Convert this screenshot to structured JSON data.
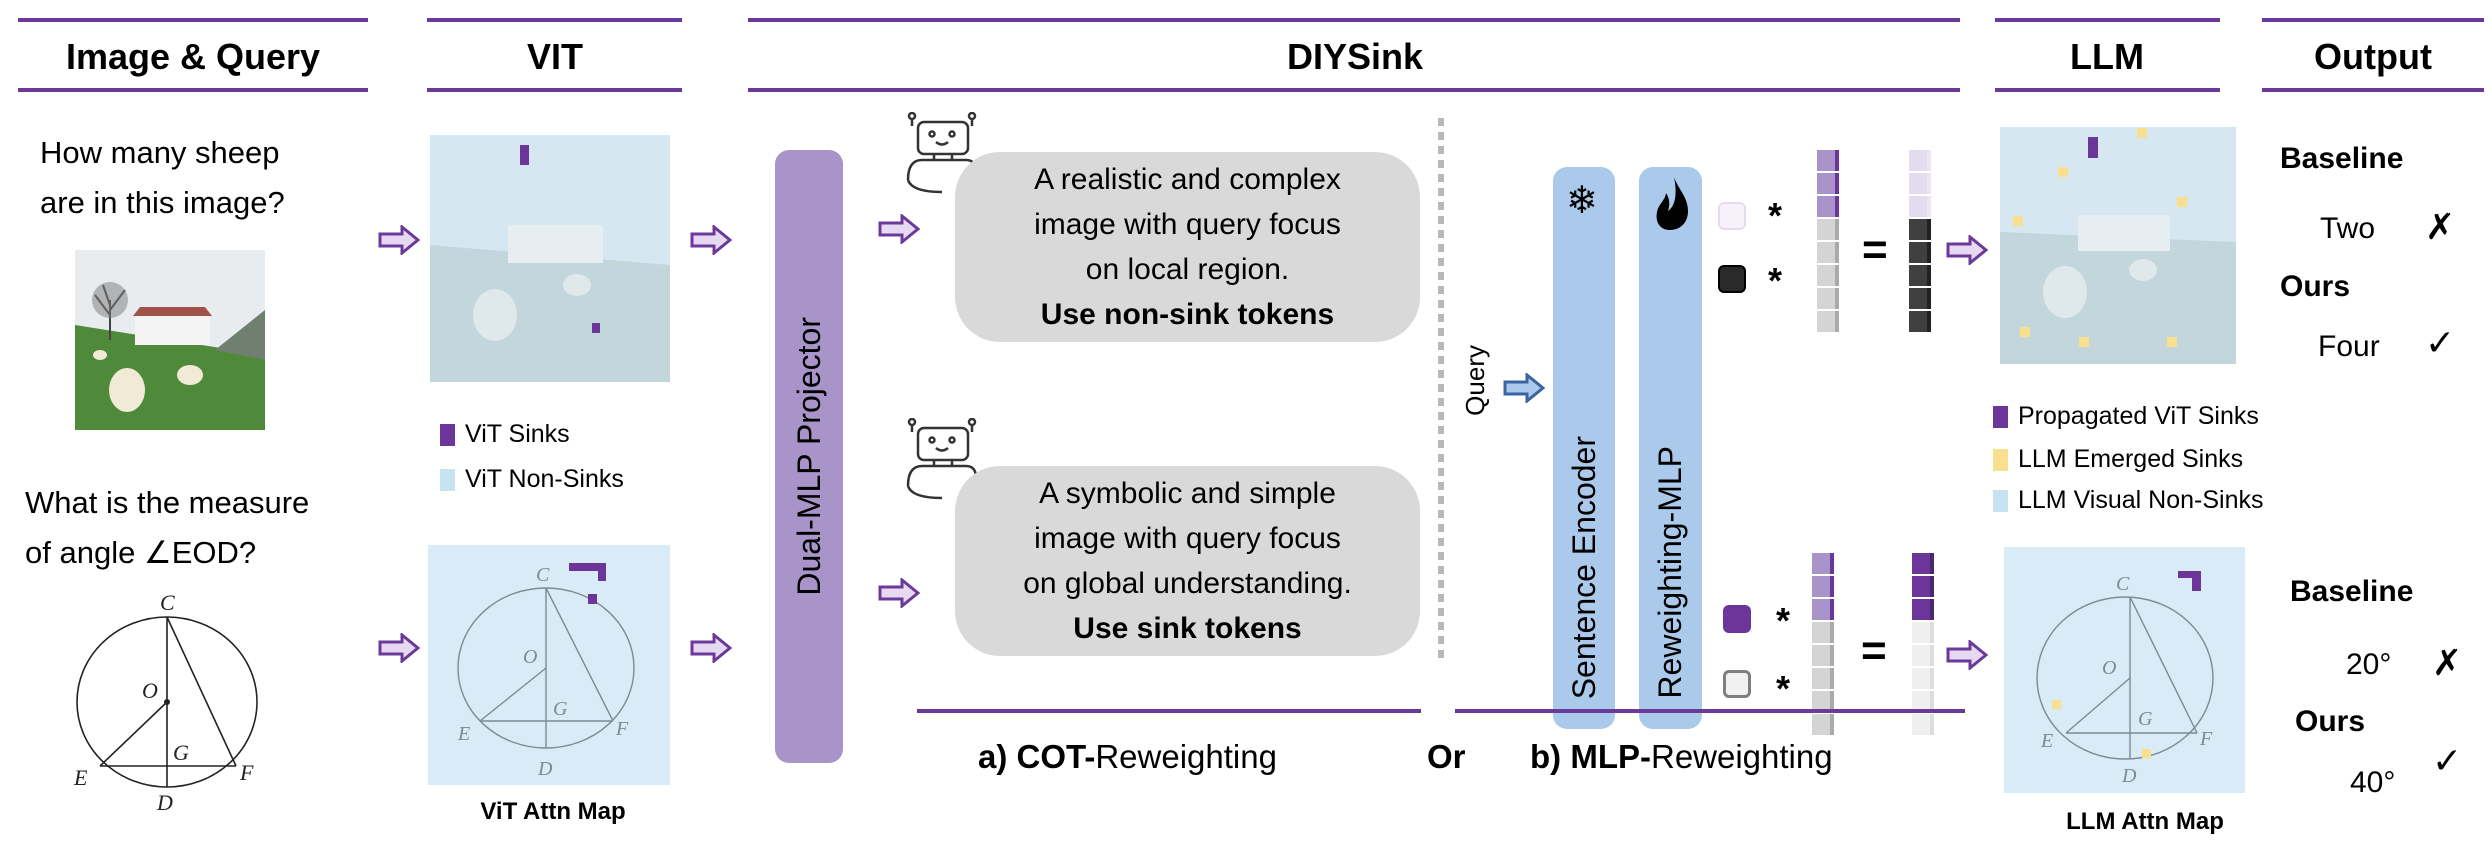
{
  "headers": {
    "image_query": "Image & Query",
    "vit": "VIT",
    "diysink": "DIYSink",
    "llm": "LLM",
    "output": "Output"
  },
  "queries": {
    "q1_line1": "How many sheep",
    "q1_line2": "are in this image?",
    "q2_line1": "What is the measure",
    "q2_line2": "of angle ∠EOD?"
  },
  "geometry_labels": {
    "c": "C",
    "o": "O",
    "g": "G",
    "e": "E",
    "f": "F",
    "d": "D"
  },
  "vit": {
    "legend_sinks": "ViT Sinks",
    "legend_non_sinks": "ViT Non-Sinks",
    "attn_map_label": "ViT Attn Map"
  },
  "projector": {
    "label": "Dual-MLP Projector"
  },
  "cot": {
    "box1": {
      "line1": "A realistic and complex",
      "line2": "image with query focus",
      "line3": "on local region.",
      "line4": "Use non-sink tokens"
    },
    "box2": {
      "line1": "A symbolic and simple",
      "line2": "image with query focus",
      "line3": "on global understanding.",
      "line4": "Use sink tokens"
    },
    "caption_prefix": "a) ",
    "caption_bold": "COT-",
    "caption_rest": "Reweighting"
  },
  "or_label": "Or",
  "mlp": {
    "query_label": "Query",
    "sentence_encoder": "Sentence Encoder",
    "reweighting_mlp": "Reweighting-MLP",
    "star": "*",
    "equals": "=",
    "caption_prefix": "b) ",
    "caption_bold": "MLP-",
    "caption_rest": "Reweighting"
  },
  "llm": {
    "legend_propagated": "Propagated ViT Sinks",
    "legend_emerged": "LLM Emerged Sinks",
    "legend_non_sinks": "LLM Visual Non-Sinks",
    "attn_map_label": "LLM Attn Map"
  },
  "output": {
    "q1": {
      "baseline_label": "Baseline",
      "baseline_answer": "Two",
      "baseline_mark": "✗",
      "ours_label": "Ours",
      "ours_answer": "Four",
      "ours_mark": "✓"
    },
    "q2": {
      "baseline_label": "Baseline",
      "baseline_answer": "20°",
      "baseline_mark": "✗",
      "ours_label": "Ours",
      "ours_answer": "40°",
      "ours_mark": "✓"
    }
  },
  "icons": [
    "right-arrow-icon",
    "robot-icon",
    "snowflake-icon",
    "flame-icon",
    "check-icon",
    "cross-icon"
  ],
  "colors": {
    "accent_purple": "#6b3a99",
    "vit_sink": "#6b3599",
    "llm_emerged_sink": "#f8e08e",
    "non_sink": "#c7e3f2",
    "projector": "#a894c9",
    "encoder": "#abc9ea",
    "bubble": "#d9d9d9"
  }
}
